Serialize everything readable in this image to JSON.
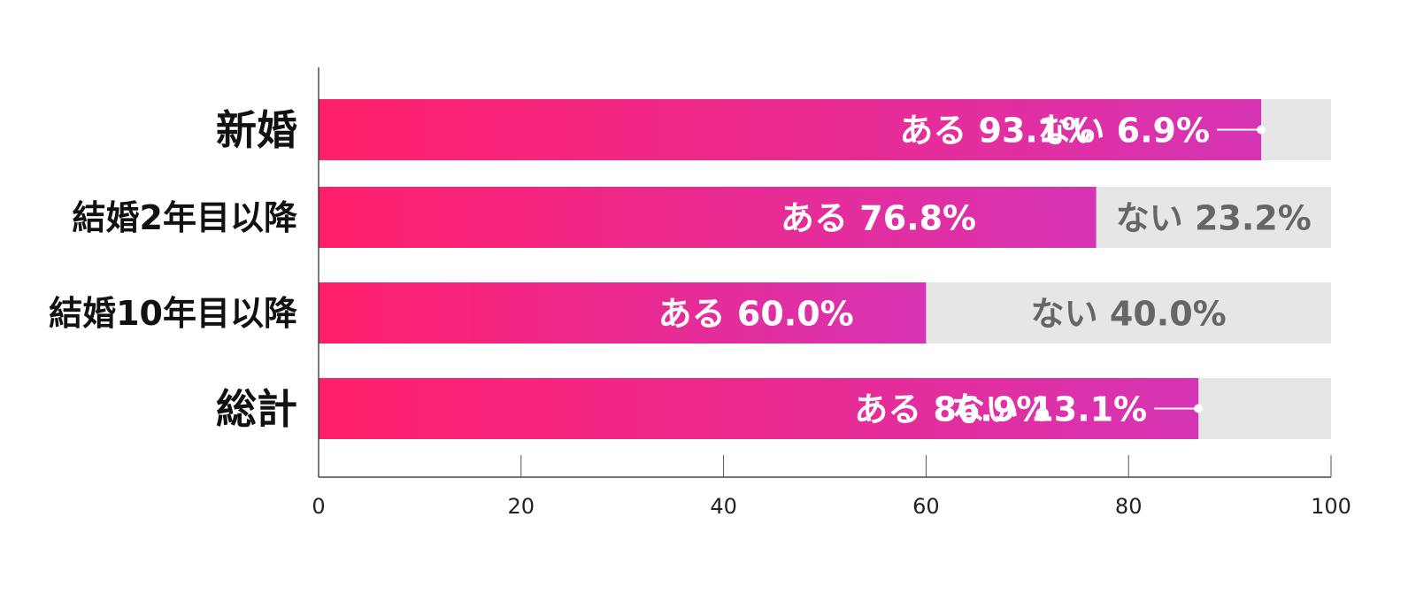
{
  "chart_data": {
    "type": "bar",
    "orientation": "horizontal",
    "stacked": true,
    "categories": [
      "新婚",
      "結婚2年目以降",
      "結婚10年目以降",
      "総計"
    ],
    "series": [
      {
        "name": "ある",
        "values": [
          93.1,
          76.8,
          60.0,
          86.9
        ]
      },
      {
        "name": "ない",
        "values": [
          6.9,
          23.2,
          40.0,
          13.1
        ]
      }
    ],
    "bar_labels": [
      {
        "yes": "ある 93.1%",
        "no": "ない 6.9%"
      },
      {
        "yes": "ある 76.8%",
        "no": "ない 23.2%"
      },
      {
        "yes": "ある 60.0%",
        "no": "ない 40.0%"
      },
      {
        "yes": "ある 86.9%",
        "no": "ない 13.1%"
      }
    ],
    "xlim": [
      0,
      100
    ],
    "x_ticks": [
      "0",
      "20",
      "40",
      "60",
      "80",
      "100"
    ],
    "grid": false,
    "colors": {
      "yes_gradient_start": "#ff1f6a",
      "yes_gradient_end": "#d634b4",
      "no_fill": "#e6e6e6",
      "no_text_outside": "#666666",
      "label_inside": "#ffffff"
    }
  }
}
